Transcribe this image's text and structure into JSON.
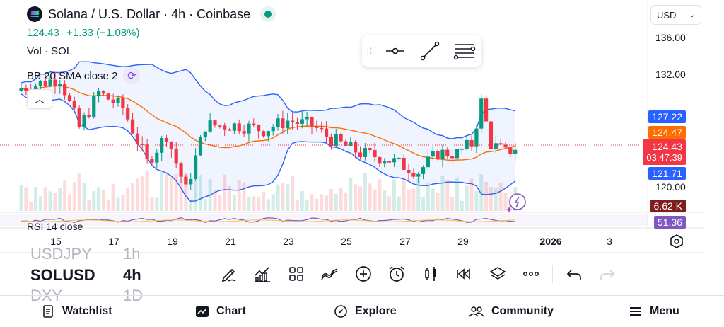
{
  "header": {
    "title": "Solana / U.S. Dollar · 4h · Coinbase",
    "price": "124.43",
    "change": "+1.33 (+1.08%)",
    "indicator_volume": "Vol · SOL",
    "indicator_bb": "BB 20 SMA close 2",
    "indicator_rsi": "RSI 14 close"
  },
  "currency_select": {
    "value": "USD"
  },
  "y_axis": {
    "ticks": [
      "136.00",
      "132.00",
      "120.00"
    ]
  },
  "price_labels": {
    "bb_upper": "127.22",
    "bb_basis": "124.47",
    "last_price": "124.43",
    "countdown": "03:47:39",
    "bb_lower": "121.71",
    "volume": "6.62 K",
    "rsi": "51.36"
  },
  "x_axis": {
    "ticks": [
      "15",
      "17",
      "19",
      "21",
      "23",
      "25",
      "27",
      "29",
      "2026",
      "3"
    ]
  },
  "watchlist_peek": {
    "rows": [
      {
        "symbol": "USDJPY",
        "timeframe": "1h"
      },
      {
        "symbol": "SOLUSD",
        "timeframe": "4h"
      },
      {
        "symbol": "DXY",
        "timeframe": "1D"
      }
    ]
  },
  "toolbar": {
    "icons": [
      "drawing-pen-icon",
      "indicators-icon",
      "layouts-icon",
      "chart-type-icon",
      "add-icon",
      "alert-clock-icon",
      "candles-icon",
      "replay-icon",
      "layers-icon",
      "more-icon",
      "undo-icon",
      "redo-icon"
    ]
  },
  "nav": {
    "watchlist": "Watchlist",
    "chart": "Chart",
    "explore": "Explore",
    "community": "Community",
    "menu": "Menu"
  },
  "colors": {
    "up": "#089981",
    "down": "#f23645",
    "bb_band": "#2962ff",
    "bb_basis": "#ff6d00",
    "rsi": "#7e57c2",
    "volume_label": "#7f1d1d"
  }
}
